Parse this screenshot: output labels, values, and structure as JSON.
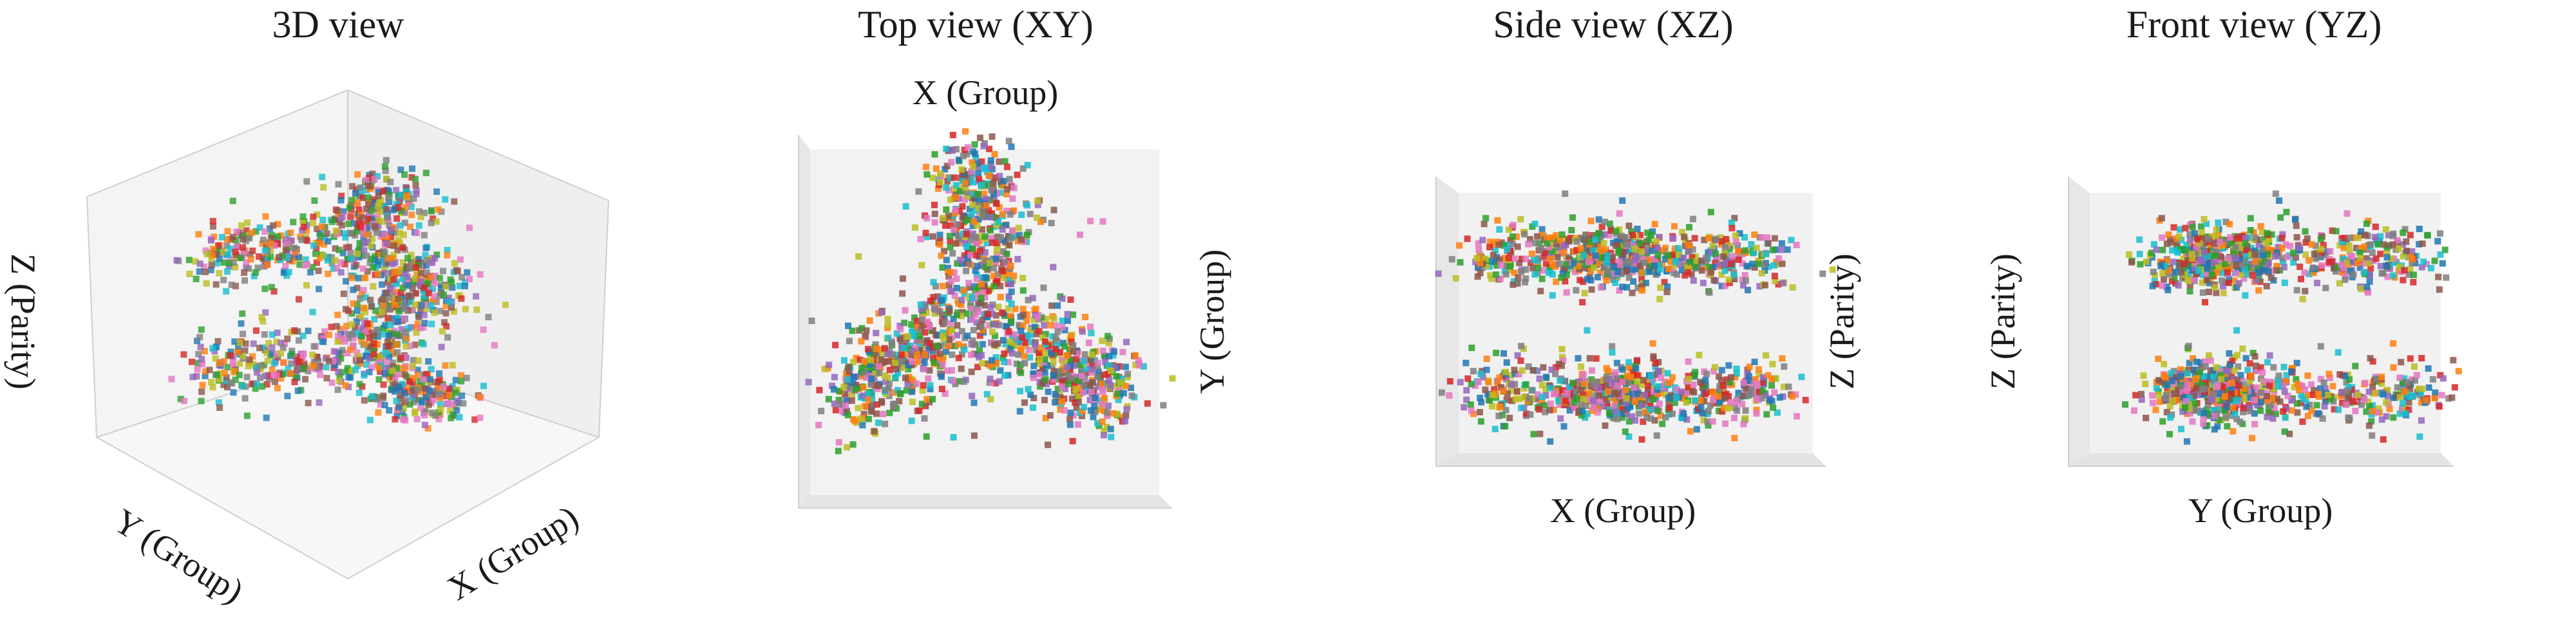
{
  "figure": {
    "background": "#ffffff",
    "pane_color": "#f2f2f2",
    "edge_color": "#cfcfcf"
  },
  "chart_data": [
    {
      "type": "scatter",
      "projection": "3d",
      "title": "3D view",
      "xlabel": "X (Group)",
      "ylabel": "Y (Group)",
      "zlabel": "Z (Parity)",
      "grid": false,
      "ticks": false
    },
    {
      "type": "scatter",
      "projection": "top (x-y plane)",
      "title": "Top view (XY)",
      "xlabel": "X (Group)",
      "ylabel": "Y (Group)",
      "grid": false,
      "ticks": false
    },
    {
      "type": "scatter",
      "projection": "side (x-z plane)",
      "title": "Side view (XZ)",
      "xlabel": "X (Group)",
      "ylabel": "Z (Parity)",
      "grid": false,
      "ticks": false
    },
    {
      "type": "scatter",
      "projection": "front (y-z plane)",
      "title": "Front view (YZ)",
      "xlabel": "Y (Group)",
      "ylabel": "Z (Parity)",
      "grid": false,
      "ticks": false
    }
  ],
  "point_cloud": {
    "description_of_structure": "three clusters at 120 degree spacing in the XY plane, each split into two parity layers along Z",
    "arms": 3,
    "arm_angles_deg_in_xy": [
      90,
      210,
      330
    ],
    "parity_layers_z": [
      1,
      -1
    ],
    "points_per_cluster": 230,
    "colors": [
      "#1f77b4",
      "#ff7f0e",
      "#2ca02c",
      "#d62728",
      "#9467bd",
      "#8c564b",
      "#e377c2",
      "#7f7f7f",
      "#bcbd22",
      "#17becf"
    ]
  }
}
